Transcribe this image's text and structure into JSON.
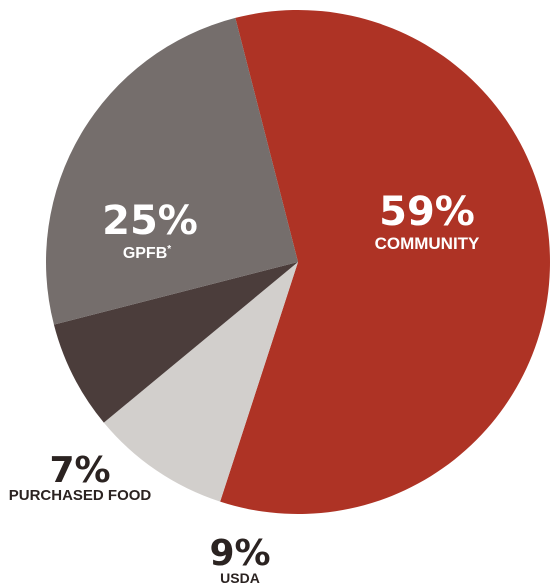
{
  "chart_data": {
    "type": "pie",
    "title": "",
    "slices": [
      {
        "name": "COMMUNITY",
        "value": 59,
        "pct_label": "59%",
        "color": "#ae3325",
        "label_placement": "inside"
      },
      {
        "name": "USDA",
        "value": 9,
        "pct_label": "9%",
        "color": "#d2cfcc",
        "label_placement": "outside"
      },
      {
        "name": "PURCHASED FOOD",
        "value": 7,
        "pct_label": "7%",
        "color": "#4b3d3b",
        "label_placement": "outside"
      },
      {
        "name": "GPFB",
        "name_suffix": "*",
        "value": 25,
        "pct_label": "25%",
        "color": "#756e6c",
        "label_placement": "inside"
      }
    ],
    "start_direction": "top",
    "slice_order": "clockwise",
    "colors": {
      "inside_label": "#ffffff",
      "outside_label": "#2b2321"
    }
  }
}
